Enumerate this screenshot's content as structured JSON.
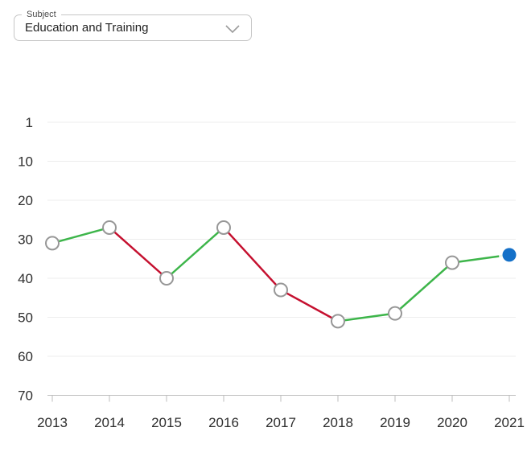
{
  "subject_select": {
    "label": "Subject",
    "value": "Education and Training"
  },
  "chart_data": {
    "type": "line",
    "title": "",
    "xlabel": "",
    "ylabel": "",
    "x": [
      2013,
      2014,
      2015,
      2016,
      2017,
      2018,
      2019,
      2020,
      2021
    ],
    "series": [
      {
        "name": "Education and Training",
        "values": [
          31,
          27,
          40,
          27,
          43,
          51,
          49,
          36,
          34
        ]
      }
    ],
    "y_ticks": [
      1,
      10,
      20,
      30,
      40,
      50,
      60,
      70
    ],
    "ylim": [
      1,
      70
    ],
    "y_axis_inverted": true,
    "grid": true,
    "legend": false,
    "marker_style": "open-circle",
    "latest_point_style": "filled-circle-with-halo",
    "segment_color_rule": "green when rank improves (value decreases), red when rank worsens (value increases)",
    "colors": {
      "improving": "#3db54a",
      "declining": "#c5102f",
      "marker_fill": "#ffffff",
      "marker_stroke": "#979797",
      "latest_point": "#1470c8",
      "gridline": "#ededed",
      "axis_line": "#bdbdbd",
      "axis_text": "#2e2e2e"
    }
  }
}
